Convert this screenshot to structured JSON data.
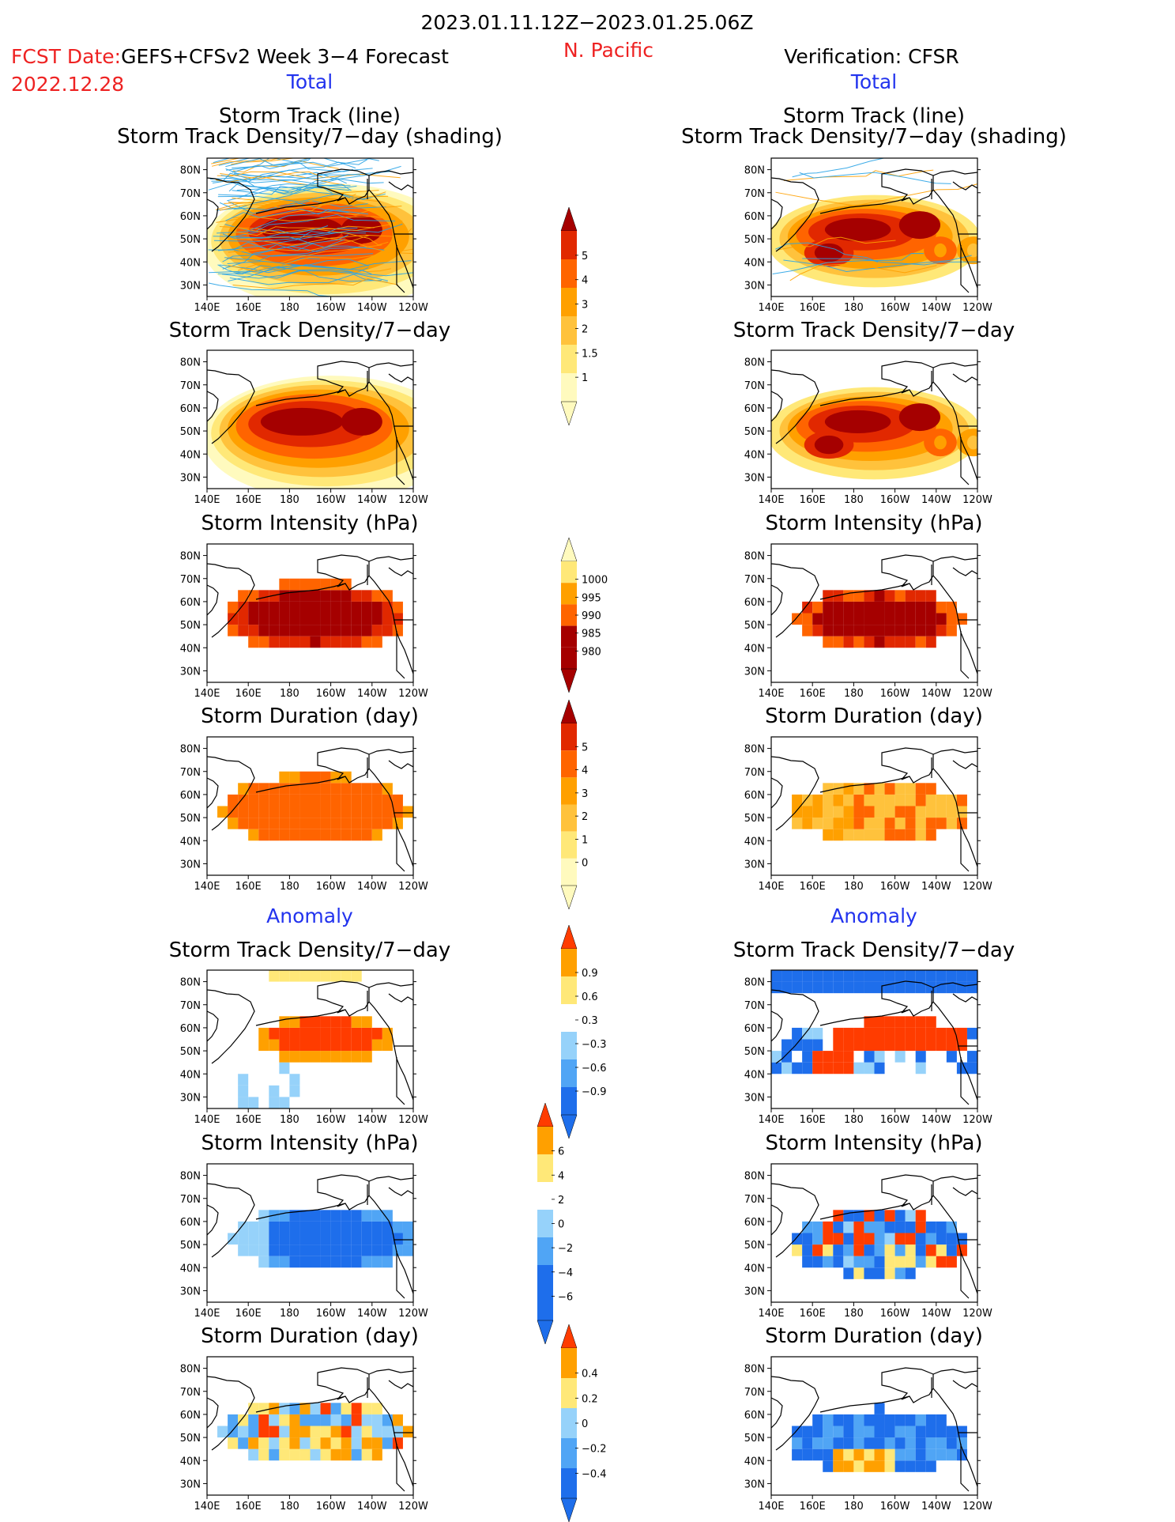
{
  "header": {
    "period": "2023.01.11.12Z−2023.01.25.06Z",
    "fcst_date_label": "FCST Date:",
    "fcst_date": "2022.12.28",
    "forecast_title": "GEFS+CFSv2 Week 3−4 Forecast",
    "region": "N. Pacific",
    "verification": "Verification: CFSR",
    "total_label": "Total",
    "anomaly_label": "Anomaly"
  },
  "colors": {
    "text_red": "#ee2222",
    "text_blue": "#2233ee",
    "warm": [
      "#fffabe",
      "#ffe878",
      "#ffc23c",
      "#ffa000",
      "#ff6400",
      "#e12800",
      "#a50000"
    ],
    "diverging": [
      "#1e6eeb",
      "#50a5f5",
      "#96d2fa",
      "#ffffff",
      "#ffe878",
      "#ffa000",
      "#ff3c00"
    ]
  },
  "map_axes": {
    "lon_ticks": [
      "140E",
      "160E",
      "180",
      "160W",
      "140W",
      "120W"
    ],
    "lat_ticks": [
      "80N",
      "70N",
      "60N",
      "50N",
      "40N",
      "30N"
    ]
  },
  "colorbars": [
    {
      "labels": [
        "5",
        "4",
        "3",
        "2",
        "1.5",
        "1"
      ]
    },
    {
      "labels": [
        "1000",
        "995",
        "990",
        "985",
        "980"
      ]
    },
    {
      "labels": [
        "5",
        "4",
        "3",
        "2",
        "1",
        "0"
      ]
    },
    {
      "labels": [
        "0.9",
        "0.6",
        "0.3",
        "−0.3",
        "−0.6",
        "−0.9"
      ]
    },
    {
      "labels": [
        "6",
        "4",
        "2",
        "0",
        "−2",
        "−4",
        "−6"
      ]
    },
    {
      "labels": [
        "0.4",
        "0.2",
        "0",
        "−0.2",
        "−0.4"
      ]
    }
  ],
  "chart_data": [
    {
      "type": "heatmap",
      "column": "forecast",
      "section": "total",
      "title": "Storm Track (line)",
      "subtitle": "Storm Track Density/7−day (shading)",
      "xlabel": "",
      "ylabel": "",
      "xlim": [
        "140E",
        "120W"
      ],
      "ylim": [
        "25N",
        "85N"
      ],
      "peak_value": 5,
      "peak_region": "45N–60N, 160E–150W"
    },
    {
      "type": "heatmap",
      "column": "forecast",
      "section": "total",
      "title": "Storm Track Density/7−day",
      "peak_value": 5
    },
    {
      "type": "heatmap",
      "column": "forecast",
      "section": "total",
      "title": "Storm Intensity (hPa)",
      "min_value": 980
    },
    {
      "type": "heatmap",
      "column": "forecast",
      "section": "total",
      "title": "Storm Duration (day)",
      "typical_value": 3
    },
    {
      "type": "heatmap",
      "column": "forecast",
      "section": "anomaly",
      "title": "Storm Track Density/7−day",
      "max_value": 0.9
    },
    {
      "type": "heatmap",
      "column": "forecast",
      "section": "anomaly",
      "title": "Storm Intensity (hPa)",
      "min_value": -4
    },
    {
      "type": "heatmap",
      "column": "forecast",
      "section": "anomaly",
      "title": "Storm Duration (day)",
      "range": [
        -0.4,
        0.4
      ]
    },
    {
      "type": "heatmap",
      "column": "verification",
      "section": "total",
      "title": "Storm Track (line)",
      "subtitle": "Storm Track Density/7−day (shading)",
      "peak_value": 5
    },
    {
      "type": "heatmap",
      "column": "verification",
      "section": "total",
      "title": "Storm Track Density/7−day",
      "peak_value": 5
    },
    {
      "type": "heatmap",
      "column": "verification",
      "section": "total",
      "title": "Storm Intensity (hPa)",
      "min_value": 980
    },
    {
      "type": "heatmap",
      "column": "verification",
      "section": "total",
      "title": "Storm Duration (day)",
      "range": [
        1,
        4
      ]
    },
    {
      "type": "heatmap",
      "column": "verification",
      "section": "anomaly",
      "title": "Storm Track Density/7−day",
      "range": [
        -0.9,
        0.9
      ]
    },
    {
      "type": "heatmap",
      "column": "verification",
      "section": "anomaly",
      "title": "Storm Intensity (hPa)",
      "range": [
        -6,
        6
      ]
    },
    {
      "type": "heatmap",
      "column": "verification",
      "section": "anomaly",
      "title": "Storm Duration (day)",
      "range": [
        -0.4,
        0.4
      ]
    }
  ]
}
